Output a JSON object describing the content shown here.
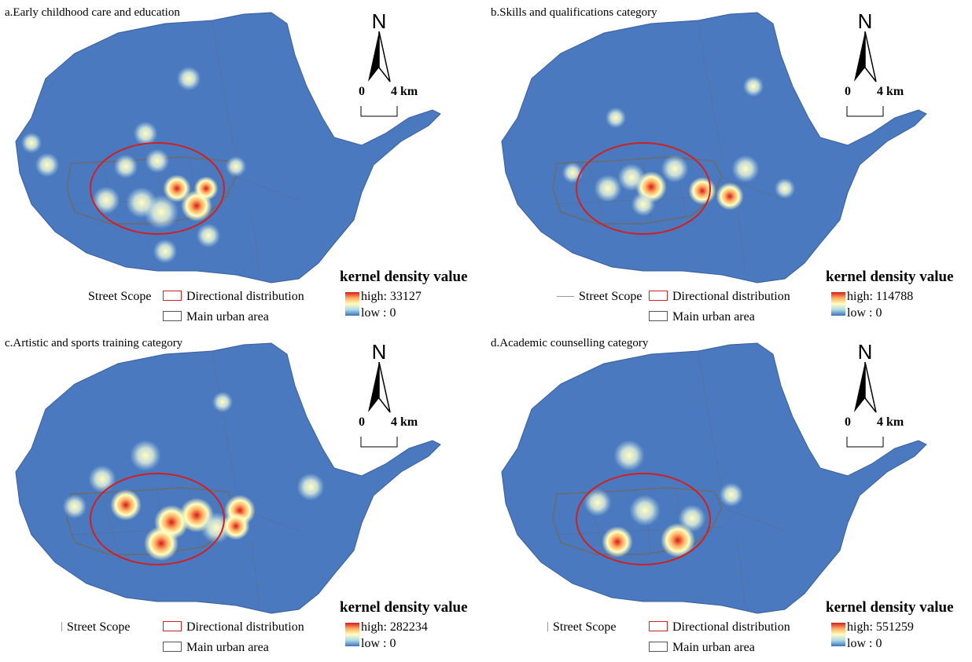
{
  "colors": {
    "background_density": "#4a79bf",
    "ellipse": "#d21f1f",
    "urban_boundary": "#6b6b6b",
    "ramp_high": "#d7191c",
    "ramp_low": "#3b72b8"
  },
  "north_arrow": {
    "letter": "N"
  },
  "scale_bar": {
    "zero": "0",
    "max": "4 km"
  },
  "legend": {
    "title": "kernel density value",
    "street_scope": "Street Scope",
    "directional": "Directional distribution",
    "main_urban": "Main urban area",
    "low": "low : 0"
  },
  "panels": [
    {
      "title": "a.Early childhood care and education",
      "high": "high: 33127"
    },
    {
      "title": "b.Skills and qualifications category",
      "high": "high: 114788"
    },
    {
      "title": "c.Artistic and sports training category",
      "high": "high: 282234"
    },
    {
      "title": "d.Academic counselling category",
      "high": "high: 551259"
    }
  ]
}
